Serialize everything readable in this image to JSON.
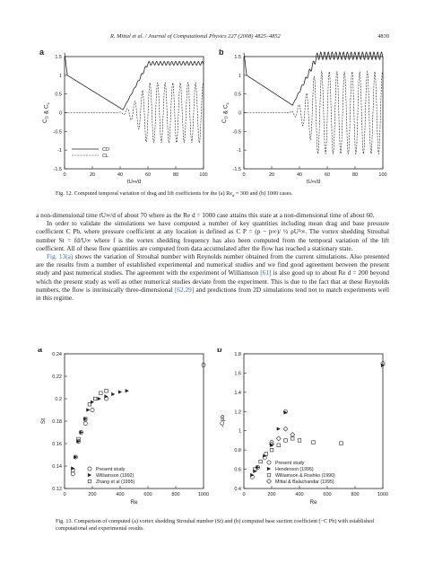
{
  "header": {
    "running_title": "R. Mittal et al. / Journal of Computational Physics 227 (2008) 4825–4852",
    "page_number": "4839"
  },
  "figure12": {
    "panels": [
      {
        "label": "a",
        "ylabel": "C",
        "ysub_d": "D",
        "yamp": "&",
        "ysub_l": "L",
        "xlabel": "tU∞/d",
        "yticks": [
          "-1.5",
          "-1",
          "-0.5",
          "0",
          "0.5",
          "1",
          "1.5"
        ],
        "xticks": [
          "0",
          "20",
          "40",
          "60",
          "80",
          "100"
        ],
        "legend": [
          {
            "label": "CD"
          },
          {
            "label": "CL"
          }
        ]
      },
      {
        "label": "b",
        "ylabel": "C",
        "ysub_d": "D",
        "yamp": "&",
        "ysub_l": "L",
        "xlabel": "tU∞/d",
        "yticks": [
          "-1.5",
          "-1",
          "-0.5",
          "0",
          "0.5",
          "1",
          "1.5"
        ],
        "xticks": [
          "0",
          "20",
          "40",
          "60",
          "80",
          "100"
        ]
      }
    ],
    "caption": "Fig. 12. Computed temporal variation of drag and lift coefficients for the (a) Re",
    "caption_sub": "d",
    "caption_tail": " = 300 and (b) 1000 cases."
  },
  "body_text": {
    "p1": "a non-dimensional time tU∞/d of about 70 where as the Re d = 1000 case attains this state at a non-dimensional time of about 60.",
    "p2": "In order to validate the simulations we have computed a number of key quantities including mean drag and base pressure coefficient C Pb, where pressure coefficient at any location is defined as C P = (p − p∞)/ ½ ρU²∞. The vortex shedding Strouhal number St = fd/U∞ where f is the vortex shedding frequency has also been computed from the temporal variation of the lift coefficient. All of these flow quantities are computed from data accumulated after the flow has reached a stationary state.",
    "p3a": "Fig. 13(a)",
    "p3b": " shows the variation of Strouhal number with Reynolds number obtained from the current simulations. Also presented are the results from a number of established experimental and numerical studies and we find good agreement between the present study and past numerical studies. The agreement with the experiment of Williamson ",
    "p3c": "[61]",
    "p3d": " is also good up to about Re d = 200 beyond which the present study as well as other numerical studies deviate from the experiment. This is due to the fact that at these Reynolds numbers, the flow is intrinsically three-dimensional ",
    "p3e": "[62,29]",
    "p3f": " and predictions from 2D simulations tend not to match experiments well in this regime."
  },
  "figure13": {
    "caption": "Fig. 13. Comparison of computed (a) vortex shedding Strouhal number (St) and (b) computed base suction coefficient (−C Pb) with established computational and experimental results."
  },
  "chart_data": [
    {
      "type": "line",
      "panel": "a",
      "title": "",
      "xlabel": "tU∞/d",
      "ylabel": "CD & CL",
      "xlim": [
        0,
        100
      ],
      "ylim": [
        -1.5,
        1.5
      ],
      "series": [
        {
          "name": "CD",
          "style": "solid",
          "description": "drag starts near 1.0, dips to ~0.1 at t≈40, rises to ~1.35 and oscillates slightly"
        },
        {
          "name": "CL",
          "style": "dashed",
          "description": "lift ~0 until t≈40, then grows to oscillation amplitude ~±0.8"
        }
      ]
    },
    {
      "type": "line",
      "panel": "b",
      "title": "",
      "xlabel": "tU∞/d",
      "ylabel": "CD & CL",
      "xlim": [
        0,
        100
      ],
      "ylim": [
        -1.5,
        1.5
      ],
      "series": [
        {
          "name": "CD",
          "style": "solid",
          "description": "drag dips to ~0.2 at t≈35 then oscillates around 1.5"
        },
        {
          "name": "CL",
          "style": "dashed",
          "description": "lift ~0 until t≈35 then oscillates with amplitude ~±1.1"
        }
      ]
    },
    {
      "type": "scatter",
      "panel": "a",
      "xlabel": "Re",
      "ylabel": "St",
      "xlim": [
        0,
        1000
      ],
      "ylim": [
        0.12,
        0.24
      ],
      "yticks": [
        "0.12",
        "0.14",
        "0.16",
        "0.18",
        "0.2",
        "0.22",
        "0.24"
      ],
      "xticks": [
        "0",
        "200",
        "400",
        "600",
        "800",
        "1000"
      ],
      "series": [
        {
          "name": "Present study",
          "marker": "circle",
          "points": [
            [
              60,
              0.133
            ],
            [
              80,
              0.148
            ],
            [
              100,
              0.162
            ],
            [
              120,
              0.17
            ],
            [
              150,
              0.178
            ],
            [
              200,
              0.19
            ],
            [
              300,
              0.2
            ],
            [
              1000,
              0.23
            ]
          ]
        },
        {
          "name": "Williamson (1992)",
          "marker": "triangle",
          "points": [
            [
              60,
              0.138
            ],
            [
              80,
              0.148
            ],
            [
              100,
              0.162
            ],
            [
              120,
              0.17
            ],
            [
              150,
              0.182
            ],
            [
              170,
              0.19
            ],
            [
              200,
              0.197
            ],
            [
              250,
              0.2
            ],
            [
              300,
              0.202
            ],
            [
              350,
              0.204
            ],
            [
              400,
              0.206
            ],
            [
              450,
              0.207
            ]
          ]
        },
        {
          "name": "Zhang et al (1995)",
          "marker": "square",
          "points": [
            [
              60,
              0.136
            ],
            [
              100,
              0.164
            ],
            [
              150,
              0.182
            ],
            [
              180,
              0.195
            ],
            [
              220,
              0.2
            ],
            [
              260,
              0.205
            ],
            [
              300,
              0.207
            ]
          ]
        }
      ]
    },
    {
      "type": "scatter",
      "panel": "b",
      "xlabel": "Re",
      "ylabel": "-Cpb",
      "xlim": [
        0,
        1000
      ],
      "ylim": [
        0.4,
        1.8
      ],
      "yticks": [
        "0.4",
        "0.6",
        "0.8",
        "1",
        "1.2",
        "1.4",
        "1.6",
        "1.8"
      ],
      "xticks": [
        "0",
        "200",
        "400",
        "600",
        "800",
        "1000"
      ],
      "series": [
        {
          "name": "Present study",
          "marker": "circle",
          "points": [
            [
              60,
              0.52
            ],
            [
              100,
              0.62
            ],
            [
              150,
              0.72
            ],
            [
              200,
              0.88
            ],
            [
              300,
              1.2
            ],
            [
              1000,
              1.7
            ]
          ]
        },
        {
          "name": "Henderson (1995)",
          "marker": "triangle",
          "points": [
            [
              60,
              0.54
            ],
            [
              80,
              0.58
            ],
            [
              100,
              0.62
            ],
            [
              150,
              0.74
            ],
            [
              200,
              0.85
            ],
            [
              250,
              1.02
            ],
            [
              300,
              1.19
            ],
            [
              1000,
              1.68
            ]
          ]
        },
        {
          "name": "Williamson & Roshko (1990)",
          "marker": "square",
          "points": [
            [
              80,
              0.6
            ],
            [
              120,
              0.68
            ],
            [
              160,
              0.76
            ],
            [
              200,
              0.8
            ],
            [
              250,
              0.85
            ],
            [
              300,
              0.9
            ],
            [
              350,
              0.92
            ],
            [
              400,
              0.9
            ],
            [
              500,
              0.88
            ],
            [
              700,
              0.87
            ]
          ]
        },
        {
          "name": "Mittal & Balachandar (1995)",
          "marker": "diamond",
          "points": [
            [
              200,
              0.86
            ],
            [
              250,
              0.92
            ],
            [
              300,
              1.02
            ],
            [
              350,
              0.96
            ]
          ]
        }
      ]
    }
  ]
}
